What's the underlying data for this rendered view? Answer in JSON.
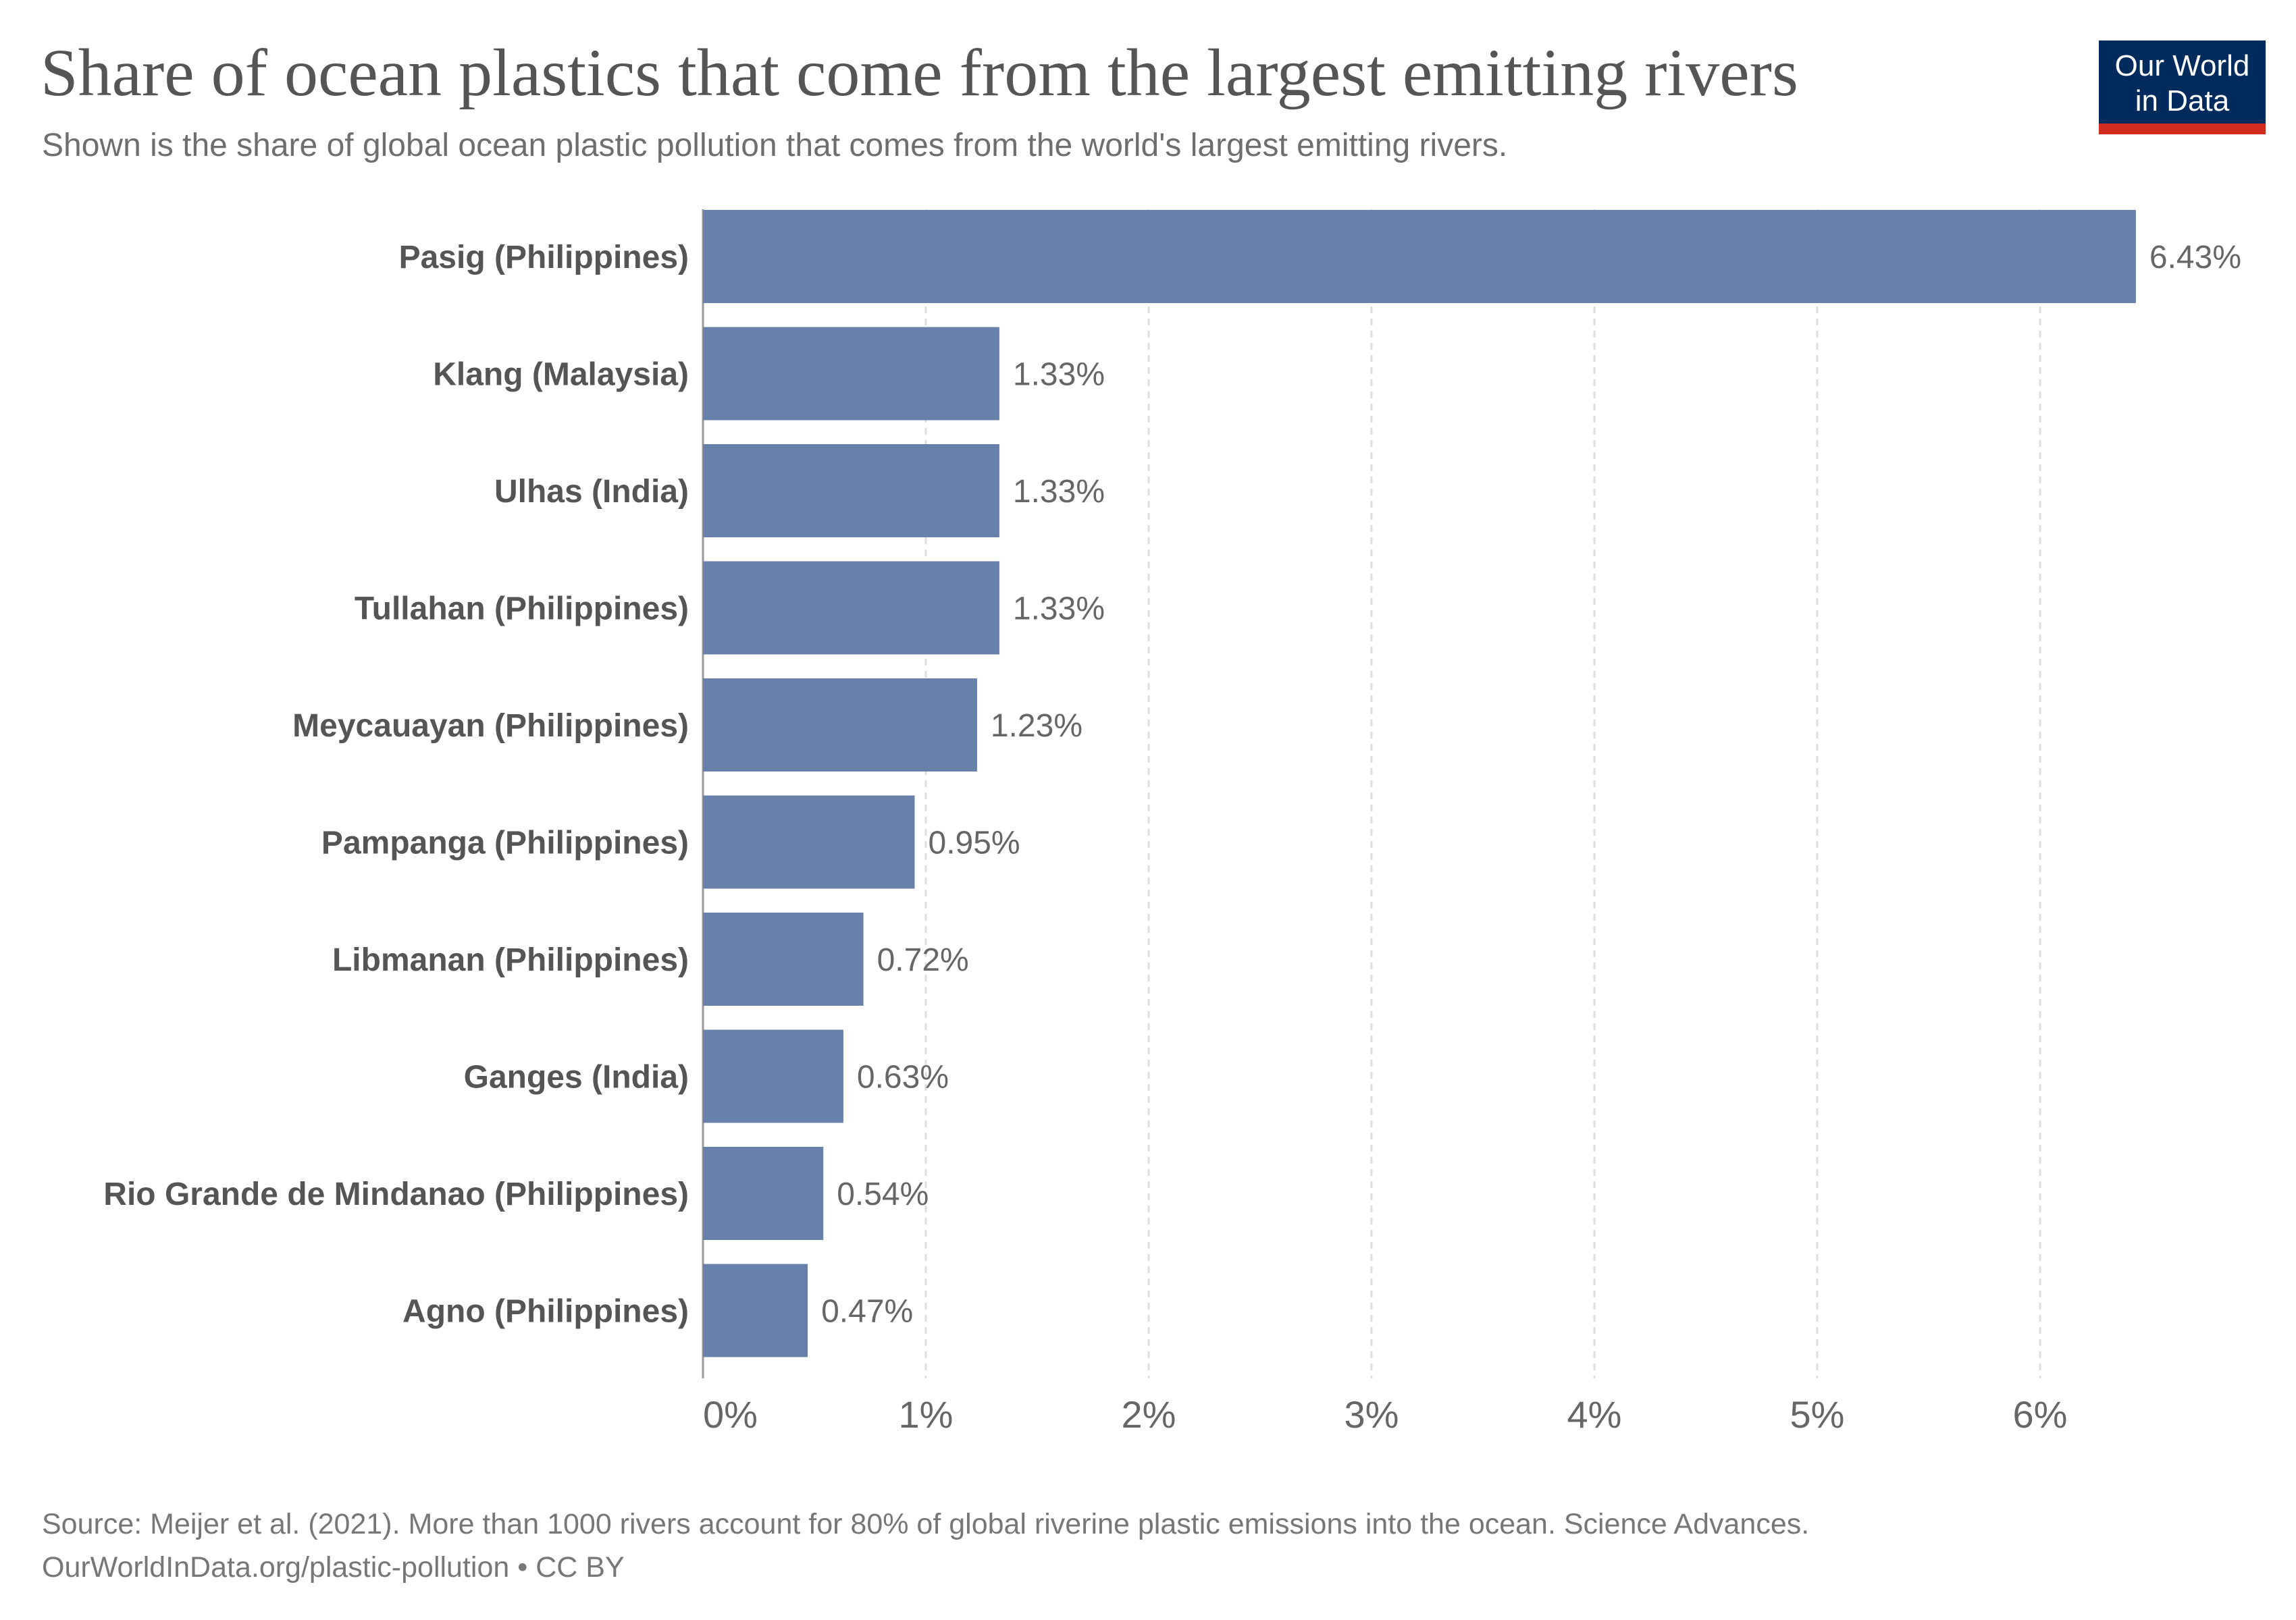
{
  "header": {
    "title": "Share of ocean plastics that come from the largest emitting rivers",
    "subtitle": "Shown is the share of global ocean plastic pollution that comes from the world's largest emitting rivers."
  },
  "logo": {
    "line1": "Our World",
    "line2": "in Data",
    "bg_color": "#002b5c",
    "accent_color": "#d42b21"
  },
  "footer": {
    "source": "Source: Meijer et al. (2021). More than 1000 rivers account for 80% of global riverine plastic emissions into the ocean. Science Advances.",
    "credit": "OurWorldInData.org/plastic-pollution • CC BY"
  },
  "chart_data": {
    "type": "bar",
    "orientation": "horizontal",
    "categories": [
      "Pasig (Philippines)",
      "Klang (Malaysia)",
      "Ulhas (India)",
      "Tullahan (Philippines)",
      "Meycauayan (Philippines)",
      "Pampanga (Philippines)",
      "Libmanan (Philippines)",
      "Ganges (India)",
      "Rio Grande de Mindanao (Philippines)",
      "Agno (Philippines)"
    ],
    "values": [
      6.43,
      1.33,
      1.33,
      1.33,
      1.23,
      0.95,
      0.72,
      0.63,
      0.54,
      0.47
    ],
    "value_labels": [
      "6.43%",
      "1.33%",
      "1.33%",
      "1.33%",
      "1.23%",
      "0.95%",
      "0.72%",
      "0.63%",
      "0.54%",
      "0.47%"
    ],
    "xlim": [
      0,
      6.5
    ],
    "ticks": [
      0,
      1,
      2,
      3,
      4,
      5,
      6
    ],
    "tick_labels": [
      "0%",
      "1%",
      "2%",
      "3%",
      "4%",
      "5%",
      "6%"
    ],
    "grid": true,
    "bar_color": "#6881ab",
    "grid_color": "#dddddd"
  }
}
